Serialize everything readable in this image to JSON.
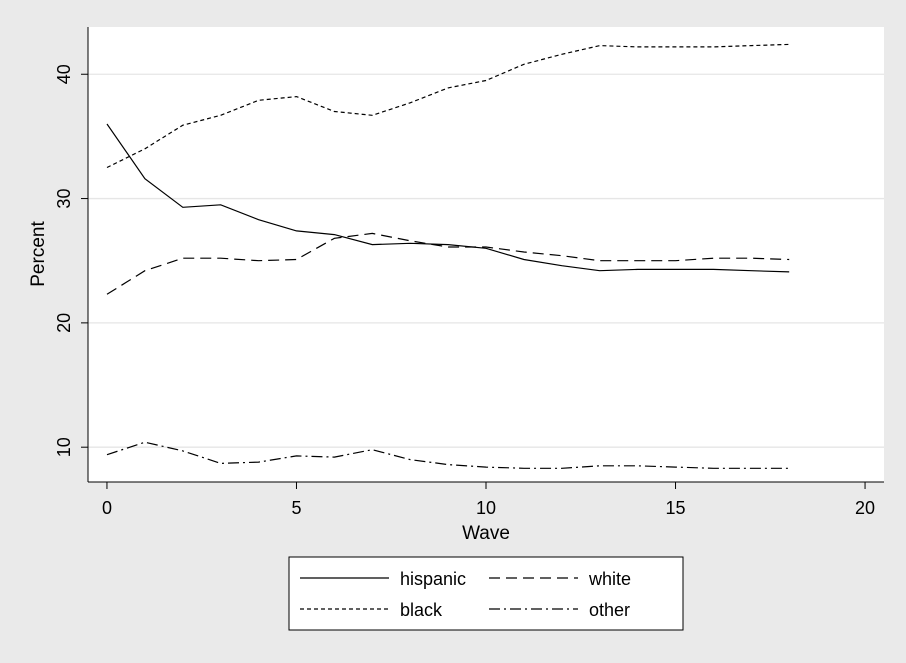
{
  "chart_data": {
    "type": "line",
    "xlabel": "Wave",
    "ylabel": "Percent",
    "xlim": [
      -0.5,
      20.5
    ],
    "ylim": [
      7.2,
      43.8
    ],
    "x_ticks": [
      0,
      5,
      10,
      15,
      20
    ],
    "y_ticks": [
      10,
      20,
      30,
      40
    ],
    "grid": "horizontal",
    "legend_position": "bottom",
    "colors": {
      "background": "#eaeaea",
      "plot_area": "#ffffff",
      "line": "#000000",
      "grid": "#e6e6e6"
    },
    "x": [
      0,
      1,
      2,
      3,
      4,
      5,
      6,
      7,
      8,
      9,
      10,
      11,
      12,
      13,
      14,
      15,
      16,
      17,
      18
    ],
    "series": [
      {
        "name": "hispanic",
        "dash": "solid",
        "values": [
          36.0,
          31.6,
          29.3,
          29.5,
          28.3,
          27.4,
          27.1,
          26.3,
          26.4,
          26.3,
          26.0,
          25.1,
          24.6,
          24.2,
          24.3,
          24.3,
          24.3,
          24.2,
          24.1
        ]
      },
      {
        "name": "white",
        "dash": "dash",
        "values": [
          22.3,
          24.2,
          25.2,
          25.2,
          25.0,
          25.1,
          26.8,
          27.2,
          26.6,
          26.1,
          26.1,
          25.7,
          25.4,
          25.0,
          25.0,
          25.0,
          25.2,
          25.2,
          25.1
        ]
      },
      {
        "name": "black",
        "dash": "short-dash",
        "values": [
          32.5,
          34.0,
          35.9,
          36.7,
          37.9,
          38.2,
          37.0,
          36.7,
          37.7,
          38.9,
          39.5,
          40.8,
          41.6,
          42.3,
          42.2,
          42.2,
          42.2,
          42.3,
          42.4
        ]
      },
      {
        "name": "other",
        "dash": "dash-dot",
        "values": [
          9.4,
          10.4,
          9.7,
          8.7,
          8.8,
          9.3,
          9.2,
          9.8,
          9.0,
          8.6,
          8.4,
          8.3,
          8.3,
          8.5,
          8.5,
          8.4,
          8.3,
          8.3,
          8.3
        ]
      }
    ]
  }
}
